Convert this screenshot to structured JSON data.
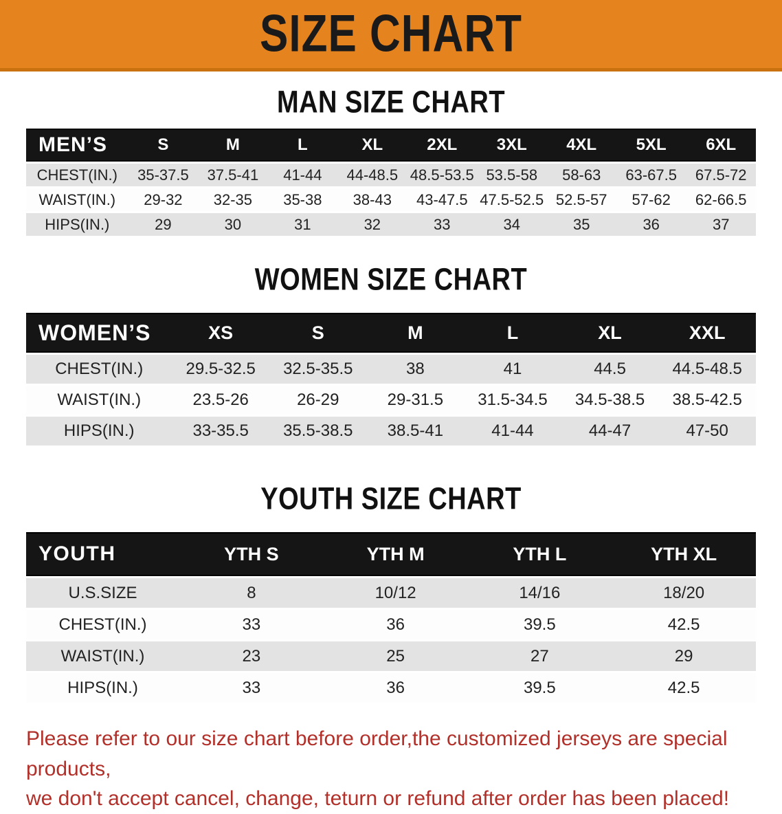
{
  "banner": {
    "title": "SIZE CHART"
  },
  "colors": {
    "banner_bg": "#E5831F",
    "banner_border": "#C9700F",
    "header_band_bg": "#151515",
    "stripe_row_bg": "#E3E3E3",
    "footer_text": "#B2302A"
  },
  "sections": [
    {
      "title": "MAN SIZE CHART",
      "header_label": "MEN’S",
      "columns": [
        "S",
        "M",
        "L",
        "XL",
        "2XL",
        "3XL",
        "4XL",
        "5XL",
        "6XL"
      ],
      "rows": [
        {
          "label": "CHEST(IN.)",
          "values": [
            "35-37.5",
            "37.5-41",
            "41-44",
            "44-48.5",
            "48.5-53.5",
            "53.5-58",
            "58-63",
            "63-67.5",
            "67.5-72"
          ]
        },
        {
          "label": "WAIST(IN.)",
          "values": [
            "29-32",
            "32-35",
            "35-38",
            "38-43",
            "43-47.5",
            "47.5-52.5",
            "52.5-57",
            "57-62",
            "62-66.5"
          ]
        },
        {
          "label": "HIPS(IN.)",
          "values": [
            "29",
            "30",
            "31",
            "32",
            "33",
            "34",
            "35",
            "36",
            "37"
          ]
        }
      ]
    },
    {
      "title": "WOMEN SIZE CHART",
      "header_label": "WOMEN’S",
      "columns": [
        "XS",
        "S",
        "M",
        "L",
        "XL",
        "XXL"
      ],
      "rows": [
        {
          "label": "CHEST(IN.)",
          "values": [
            "29.5-32.5",
            "32.5-35.5",
            "38",
            "41",
            "44.5",
            "44.5-48.5"
          ]
        },
        {
          "label": "WAIST(IN.)",
          "values": [
            "23.5-26",
            "26-29",
            "29-31.5",
            "31.5-34.5",
            "34.5-38.5",
            "38.5-42.5"
          ]
        },
        {
          "label": "HIPS(IN.)",
          "values": [
            "33-35.5",
            "35.5-38.5",
            "38.5-41",
            "41-44",
            "44-47",
            "47-50"
          ]
        }
      ]
    },
    {
      "title": "YOUTH SIZE CHART",
      "header_label": "YOUTH",
      "columns": [
        "YTH S",
        "YTH M",
        "YTH L",
        "YTH XL"
      ],
      "rows": [
        {
          "label": "U.S.SIZE",
          "values": [
            "8",
            "10/12",
            "14/16",
            "18/20"
          ]
        },
        {
          "label": "CHEST(IN.)",
          "values": [
            "33",
            "36",
            "39.5",
            "42.5"
          ]
        },
        {
          "label": "WAIST(IN.)",
          "values": [
            "23",
            "25",
            "27",
            "29"
          ]
        },
        {
          "label": "HIPS(IN.)",
          "values": [
            "33",
            "36",
            "39.5",
            "42.5"
          ]
        }
      ]
    }
  ],
  "footer": {
    "line1": "Please refer to our size chart before order,the customized jerseys are special products,",
    "line2": "we don't accept cancel, change, teturn or refund after order has been placed!"
  }
}
